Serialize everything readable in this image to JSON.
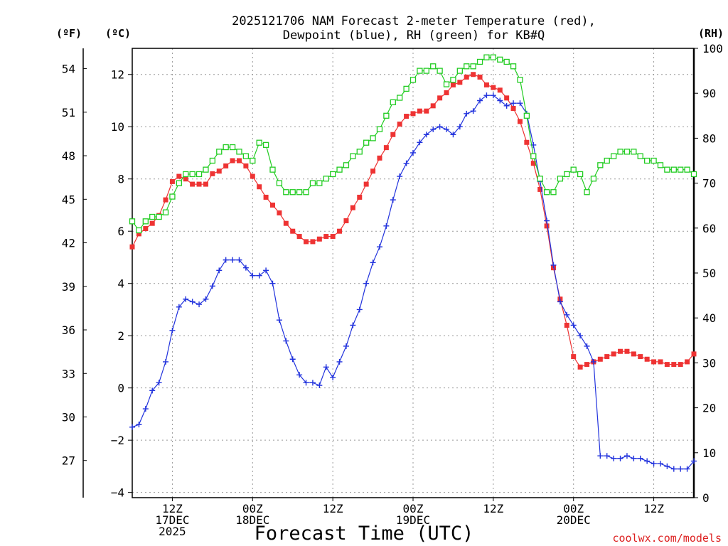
{
  "chart_data": {
    "type": "line",
    "title_line1": "2025121706 NAM Forecast 2-meter Temperature (red),",
    "title_line2": "Dewpoint (blue), RH (green) for KB#Q",
    "xlabel": "Forecast Time (UTC)",
    "y_left_label": "(ºC)",
    "y_far_left_label": "(ºF)",
    "y_right_label": "(RH)",
    "watermark": "coolwx.com/models",
    "x_unit": "hours since 2025-12-17 06Z",
    "xlim": [
      0,
      84
    ],
    "ylim_c": [
      -4.2,
      13.0
    ],
    "ylim_rh": [
      0,
      100
    ],
    "grid": true,
    "x_ticks": [
      {
        "x": 6,
        "lines": [
          "12Z",
          "17DEC",
          "2025"
        ]
      },
      {
        "x": 18,
        "lines": [
          "00Z",
          "18DEC"
        ]
      },
      {
        "x": 30,
        "lines": [
          "12Z"
        ]
      },
      {
        "x": 42,
        "lines": [
          "00Z",
          "19DEC"
        ]
      },
      {
        "x": 54,
        "lines": [
          "12Z"
        ]
      },
      {
        "x": 66,
        "lines": [
          "00Z",
          "20DEC"
        ]
      },
      {
        "x": 78,
        "lines": [
          "12Z"
        ]
      }
    ],
    "y_ticks_c": [
      -4,
      -2,
      0,
      2,
      4,
      6,
      8,
      10,
      12
    ],
    "y_ticks_c_labels": [
      "−4",
      "−2",
      "0",
      "2",
      "4",
      "6",
      "8",
      "10",
      "12"
    ],
    "y_ticks_f": [
      27,
      30,
      33,
      36,
      39,
      42,
      45,
      48,
      51,
      54
    ],
    "y_ticks_rh": [
      0,
      10,
      20,
      30,
      40,
      50,
      60,
      70,
      80,
      90,
      100
    ],
    "series": [
      {
        "name": "Temperature",
        "color": "#ee3333",
        "marker": "filled-square",
        "axis": "c",
        "x": [
          0,
          1,
          2,
          3,
          4,
          5,
          6,
          7,
          8,
          9,
          10,
          11,
          12,
          13,
          14,
          15,
          16,
          17,
          18,
          19,
          20,
          21,
          22,
          23,
          24,
          25,
          26,
          27,
          28,
          29,
          30,
          31,
          32,
          33,
          34,
          35,
          36,
          37,
          38,
          39,
          40,
          41,
          42,
          43,
          44,
          45,
          46,
          47,
          48,
          49,
          50,
          51,
          52,
          53,
          54,
          55,
          56,
          57,
          58,
          59,
          60,
          61,
          62,
          63,
          64,
          65,
          66,
          67,
          68,
          69,
          70,
          71,
          72,
          73,
          74,
          75,
          76,
          77,
          78,
          79,
          80,
          81,
          82,
          83,
          84
        ],
        "values": [
          5.4,
          5.9,
          6.1,
          6.3,
          6.6,
          7.2,
          7.9,
          8.1,
          8.0,
          7.8,
          7.8,
          7.8,
          8.2,
          8.3,
          8.5,
          8.7,
          8.7,
          8.5,
          8.1,
          7.7,
          7.3,
          7.0,
          6.7,
          6.3,
          6.0,
          5.8,
          5.6,
          5.6,
          5.7,
          5.8,
          5.8,
          6.0,
          6.4,
          6.9,
          7.3,
          7.8,
          8.3,
          8.8,
          9.2,
          9.7,
          10.1,
          10.4,
          10.5,
          10.6,
          10.6,
          10.8,
          11.1,
          11.3,
          11.6,
          11.7,
          11.9,
          12.0,
          11.9,
          11.6,
          11.5,
          11.4,
          11.1,
          10.7,
          10.2,
          9.4,
          8.6,
          7.6,
          6.2,
          4.6,
          3.4,
          2.4,
          1.2,
          0.8,
          0.9,
          1.0,
          1.1,
          1.2,
          1.3,
          1.4,
          1.4,
          1.3,
          1.2,
          1.1,
          1.0,
          1.0,
          0.9,
          0.9,
          0.9,
          1.0,
          1.3
        ]
      },
      {
        "name": "Dewpoint",
        "color": "#2233dd",
        "marker": "plus",
        "axis": "c",
        "x": [
          0,
          1,
          2,
          3,
          4,
          5,
          6,
          7,
          8,
          9,
          10,
          11,
          12,
          13,
          14,
          15,
          16,
          17,
          18,
          19,
          20,
          21,
          22,
          23,
          24,
          25,
          26,
          27,
          28,
          29,
          30,
          31,
          32,
          33,
          34,
          35,
          36,
          37,
          38,
          39,
          40,
          41,
          42,
          43,
          44,
          45,
          46,
          47,
          48,
          49,
          50,
          51,
          52,
          53,
          54,
          55,
          56,
          57,
          58,
          59,
          60,
          61,
          62,
          63,
          64,
          65,
          66,
          67,
          68,
          69,
          70,
          71,
          72,
          73,
          74,
          75,
          76,
          77,
          78,
          79,
          80,
          81,
          82,
          83,
          84
        ],
        "values": [
          -1.5,
          -1.4,
          -0.8,
          -0.1,
          0.2,
          1.0,
          2.2,
          3.1,
          3.4,
          3.3,
          3.2,
          3.4,
          3.9,
          4.5,
          4.9,
          4.9,
          4.9,
          4.6,
          4.3,
          4.3,
          4.5,
          4.0,
          2.6,
          1.8,
          1.1,
          0.5,
          0.2,
          0.2,
          0.1,
          0.8,
          0.4,
          1.0,
          1.6,
          2.4,
          3.0,
          4.0,
          4.8,
          5.4,
          6.2,
          7.2,
          8.1,
          8.6,
          9.0,
          9.4,
          9.7,
          9.9,
          10.0,
          9.9,
          9.7,
          10.0,
          10.5,
          10.6,
          11.0,
          11.2,
          11.2,
          11.0,
          10.8,
          10.9,
          10.9,
          10.5,
          9.3,
          7.9,
          6.4,
          4.7,
          3.3,
          2.8,
          2.4,
          2.0,
          1.6,
          1.0,
          -2.6,
          -2.6,
          -2.7,
          -2.7,
          -2.6,
          -2.7,
          -2.7,
          -2.8,
          -2.9,
          -2.9,
          -3.0,
          -3.1,
          -3.1,
          -3.1,
          -2.8
        ]
      },
      {
        "name": "RH",
        "color": "#22cc22",
        "marker": "open-square",
        "axis": "rh",
        "x": [
          0,
          1,
          2,
          3,
          4,
          5,
          6,
          7,
          8,
          9,
          10,
          11,
          12,
          13,
          14,
          15,
          16,
          17,
          18,
          19,
          20,
          21,
          22,
          23,
          24,
          25,
          26,
          27,
          28,
          29,
          30,
          31,
          32,
          33,
          34,
          35,
          36,
          37,
          38,
          39,
          40,
          41,
          42,
          43,
          44,
          45,
          46,
          47,
          48,
          49,
          50,
          51,
          52,
          53,
          54,
          55,
          56,
          57,
          58,
          59,
          60,
          61,
          62,
          63,
          64,
          65,
          66,
          67,
          68,
          69,
          70,
          71,
          72,
          73,
          74,
          75,
          76,
          77,
          78,
          79,
          80,
          81,
          82,
          83,
          84
        ],
        "values": [
          61.5,
          59.5,
          61.5,
          62.5,
          62.5,
          63.5,
          67,
          70,
          72,
          72,
          72,
          73,
          75,
          77,
          78,
          78,
          77,
          76,
          75,
          79,
          78.5,
          73,
          70,
          68,
          68,
          68,
          68,
          70,
          70,
          71,
          72,
          73,
          74,
          76,
          77,
          79,
          80,
          82,
          85,
          88,
          89,
          91,
          93,
          95,
          95,
          96,
          95,
          92,
          93,
          95,
          96,
          96,
          97,
          98,
          98,
          97.5,
          97,
          96,
          93,
          85,
          76,
          71,
          68,
          68,
          71,
          72,
          73,
          72,
          68,
          71,
          74,
          75,
          76,
          77,
          77,
          77,
          76,
          75,
          75,
          74,
          73,
          73,
          73,
          73,
          72
        ]
      }
    ]
  }
}
